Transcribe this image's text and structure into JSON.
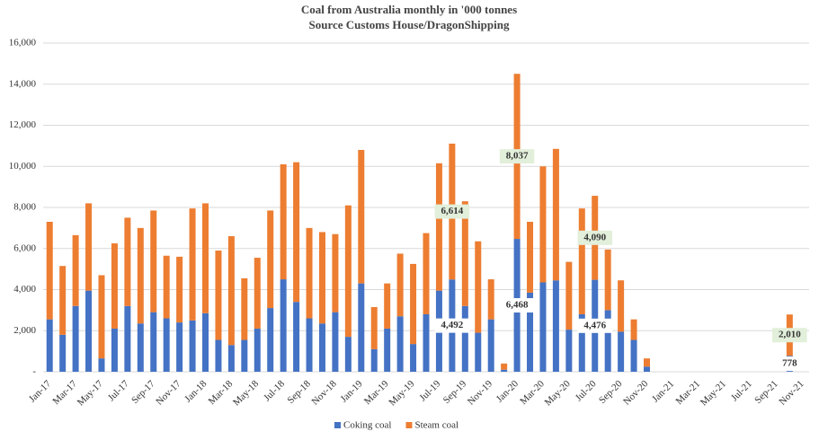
{
  "chart_data": {
    "type": "stacked_bar",
    "title": "Coal from Australia monthly in '000 tonnes",
    "subtitle": "Source Customs House/DragonShipping",
    "categories": [
      "Jan-17",
      null,
      "Mar-17",
      null,
      "May-17",
      null,
      "Jul-17",
      null,
      "Sep-17",
      null,
      "Nov-17",
      null,
      "Jan-18",
      null,
      "Mar-18",
      null,
      "May-18",
      null,
      "Jul-18",
      null,
      "Sep-18",
      null,
      "Nov-18",
      null,
      "Jan-19",
      null,
      "Mar-19",
      null,
      "May-19",
      null,
      "Jul-19",
      null,
      "Sep-19",
      null,
      "Nov-19",
      null,
      "Jan-20",
      null,
      "Mar-20",
      null,
      "May-20",
      null,
      "Jul-20",
      null,
      "Sep-20",
      null,
      "Nov-20",
      null,
      "Jan-21",
      null,
      "Mar-21",
      null,
      "May-21",
      null,
      "Jul-21",
      null,
      "Sep-21",
      null,
      "Nov-21"
    ],
    "series": [
      {
        "name": "Coking coal",
        "color": "#4472c4",
        "values": [
          2550,
          1800,
          3200,
          3950,
          650,
          2100,
          3200,
          2350,
          2900,
          2600,
          2400,
          2500,
          2850,
          1550,
          1300,
          1550,
          2100,
          3100,
          4500,
          3400,
          2600,
          2350,
          2900,
          1700,
          4300,
          1100,
          2100,
          2700,
          1350,
          2800,
          3950,
          4492,
          3200,
          1900,
          2550,
          100,
          6468,
          3850,
          4350,
          4450,
          2050,
          2800,
          4476,
          3000,
          1950,
          1550,
          250,
          null,
          null,
          null,
          null,
          null,
          null,
          null,
          null,
          null,
          null,
          778,
          null
        ],
        "value_labels": [
          null,
          null,
          null,
          null,
          null,
          null,
          null,
          null,
          null,
          null,
          null,
          null,
          null,
          null,
          null,
          null,
          null,
          null,
          null,
          null,
          null,
          null,
          null,
          null,
          null,
          null,
          null,
          null,
          null,
          null,
          null,
          "4,492",
          null,
          null,
          null,
          null,
          "6,468",
          null,
          null,
          null,
          null,
          null,
          "4,476",
          null,
          null,
          null,
          null,
          null,
          null,
          null,
          null,
          null,
          null,
          null,
          null,
          null,
          null,
          "778",
          null
        ]
      },
      {
        "name": "Steam coal",
        "color": "#ed7d31",
        "values": [
          4750,
          3350,
          3450,
          4250,
          4050,
          4150,
          4300,
          4650,
          4950,
          3050,
          3200,
          5450,
          5350,
          4350,
          5300,
          3000,
          3450,
          4750,
          5600,
          6800,
          4400,
          4450,
          3800,
          6400,
          6500,
          2050,
          2200,
          3050,
          3900,
          3950,
          6200,
          6614,
          5100,
          4450,
          1950,
          300,
          8037,
          3450,
          5650,
          6400,
          3300,
          5150,
          4090,
          2950,
          2500,
          1000,
          400,
          null,
          null,
          null,
          null,
          null,
          null,
          null,
          null,
          null,
          null,
          2010,
          null
        ],
        "value_labels": [
          null,
          null,
          null,
          null,
          null,
          null,
          null,
          null,
          null,
          null,
          null,
          null,
          null,
          null,
          null,
          null,
          null,
          null,
          null,
          null,
          null,
          null,
          null,
          null,
          null,
          null,
          null,
          null,
          null,
          null,
          null,
          "6,614",
          null,
          null,
          null,
          null,
          "8,037",
          null,
          null,
          null,
          null,
          null,
          "4,090",
          null,
          null,
          null,
          null,
          null,
          null,
          null,
          null,
          null,
          null,
          null,
          null,
          null,
          null,
          "2,010",
          null
        ]
      }
    ],
    "ylim": [
      0,
      16000
    ],
    "yticks": [
      {
        "value": 0,
        "label": "-"
      },
      {
        "value": 2000,
        "label": "2,000"
      },
      {
        "value": 4000,
        "label": "4,000"
      },
      {
        "value": 6000,
        "label": "6,000"
      },
      {
        "value": 8000,
        "label": "8,000"
      },
      {
        "value": 10000,
        "label": "10,000"
      },
      {
        "value": 12000,
        "label": "12,000"
      },
      {
        "value": 14000,
        "label": "14,000"
      },
      {
        "value": 16000,
        "label": "16,000"
      }
    ],
    "grid": true,
    "legend": "bottom"
  }
}
